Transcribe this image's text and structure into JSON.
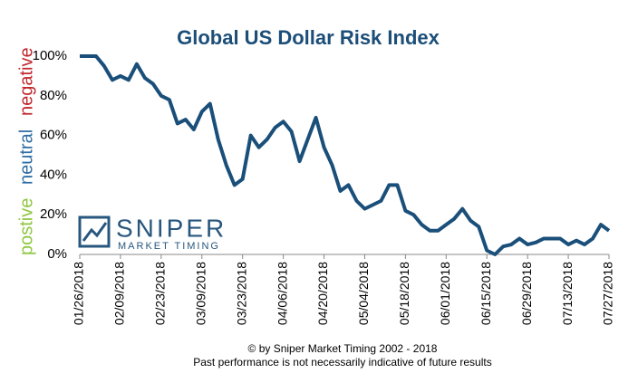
{
  "chart_data": {
    "type": "line",
    "title": "Global US Dollar Risk Index",
    "side_labels": [
      "postive",
      "neutral",
      "negative"
    ],
    "categories": [
      "01/26/2018",
      null,
      null,
      null,
      null,
      "02/09/2018",
      null,
      null,
      null,
      null,
      "02/23/2018",
      null,
      null,
      null,
      null,
      "03/09/2018",
      null,
      null,
      null,
      null,
      "03/23/2018",
      null,
      null,
      null,
      null,
      "04/06/2018",
      null,
      null,
      null,
      null,
      "04/20/2018",
      null,
      null,
      null,
      null,
      "05/04/2018",
      null,
      null,
      null,
      null,
      "05/18/2018",
      null,
      null,
      null,
      null,
      "06/01/2018",
      null,
      null,
      null,
      null,
      "06/15/2018",
      null,
      null,
      null,
      null,
      "06/29/2018",
      null,
      null,
      null,
      null,
      "07/13/2018",
      null,
      null,
      null,
      null,
      "07/27/2018"
    ],
    "values": [
      100,
      100,
      100,
      95,
      88,
      90,
      88,
      96,
      89,
      86,
      80,
      78,
      66,
      68,
      63,
      72,
      76,
      58,
      45,
      35,
      38,
      60,
      54,
      58,
      64,
      67,
      62,
      47,
      58,
      69,
      54,
      45,
      32,
      35,
      27,
      23,
      25,
      27,
      35,
      35,
      22,
      20,
      15,
      12,
      12,
      15,
      18,
      23,
      17,
      14,
      2,
      0,
      4,
      5,
      8,
      5,
      6,
      8,
      8,
      8,
      5,
      7,
      5,
      8,
      15,
      12
    ],
    "color": "#1a4f7a",
    "ylim": [
      0,
      100
    ],
    "yticks": [
      {
        "value": 0,
        "label": "0%"
      },
      {
        "value": 20,
        "label": "20%"
      },
      {
        "value": 40,
        "label": "40%"
      },
      {
        "value": 60,
        "label": "60%"
      },
      {
        "value": 80,
        "label": "80%"
      },
      {
        "value": 100,
        "label": "100%"
      }
    ],
    "grid": false
  },
  "logo": {
    "title": "SNIPER",
    "subtitle": "MARKET TIMING"
  },
  "footer": [
    "© by Sniper Market Timing 2002 - 2018",
    "Past performance is not necessarily indicative of future results"
  ]
}
